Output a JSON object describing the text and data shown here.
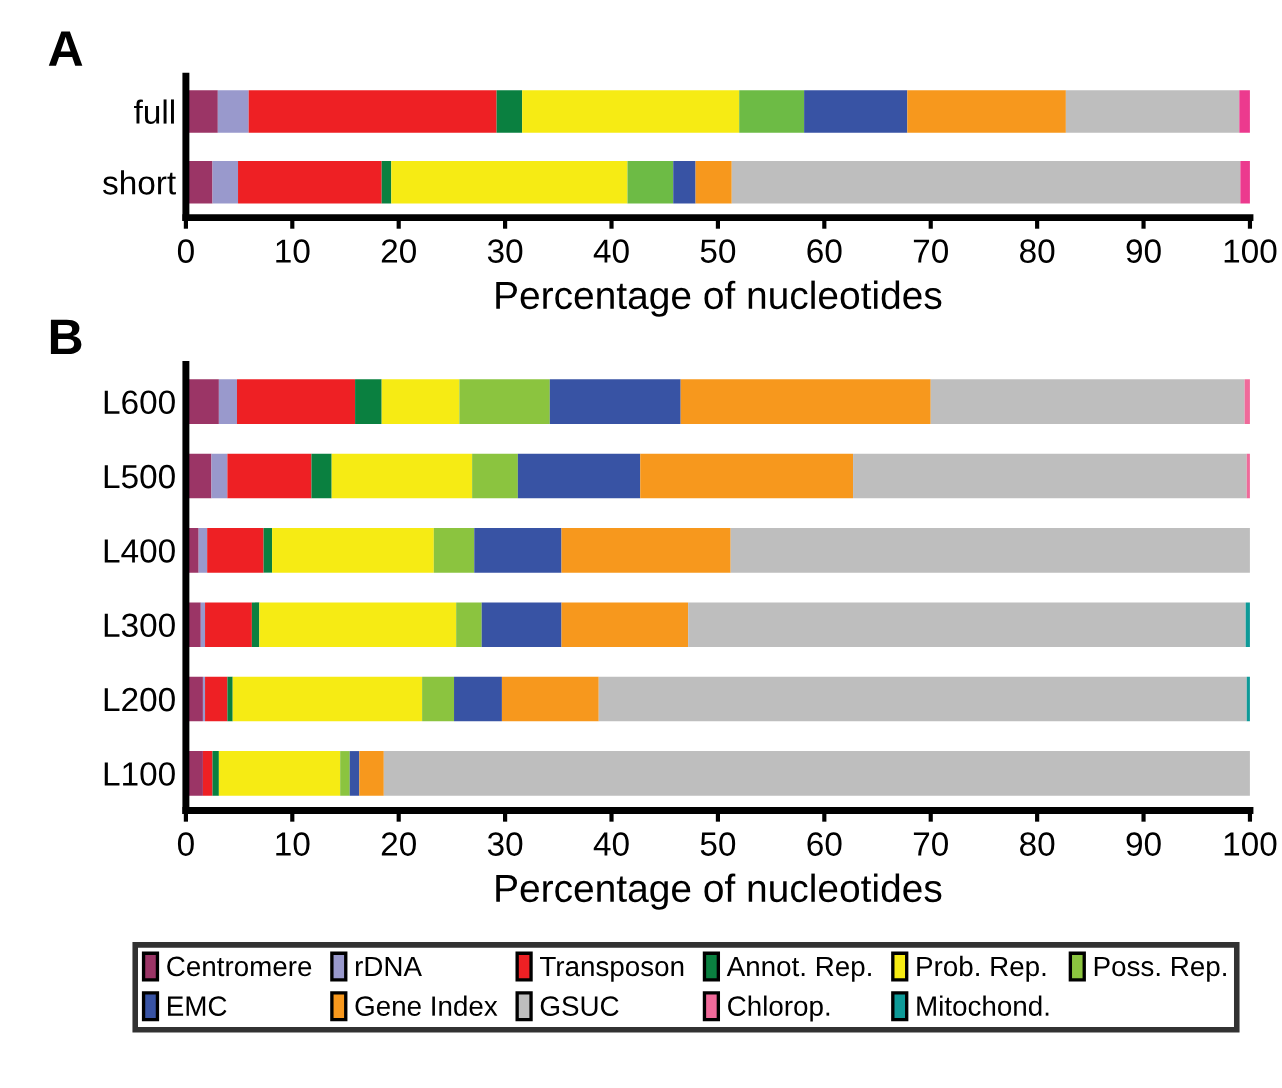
{
  "chart_data": [
    {
      "type": "bar",
      "title": "A",
      "orientation": "horizontal",
      "stacked": true,
      "xlabel": "Percentage of nucleotides",
      "categories": [
        "full",
        "short"
      ],
      "xlim": [
        0,
        100
      ],
      "xticks": [
        0,
        10,
        20,
        30,
        40,
        50,
        60,
        70,
        80,
        90,
        100
      ],
      "grid": false,
      "legend": false,
      "series": [
        {
          "color": "#9b3566",
          "values": [
            3.0,
            2.5
          ]
        },
        {
          "color": "#9999cc",
          "values": [
            2.9,
            2.4
          ]
        },
        {
          "color": "#ee2024",
          "values": [
            23.3,
            13.5
          ]
        },
        {
          "color": "#0a8040",
          "values": [
            2.4,
            0.9
          ]
        },
        {
          "color": "#f6eb14",
          "values": [
            20.4,
            22.2
          ]
        },
        {
          "color": "#6dbb45",
          "values": [
            6.1,
            4.3
          ]
        },
        {
          "color": "#3853a4",
          "values": [
            9.7,
            2.1
          ]
        },
        {
          "color": "#f7981d",
          "values": [
            14.9,
            3.4
          ]
        },
        {
          "color": "#bebebe",
          "values": [
            16.3,
            47.8
          ]
        },
        {
          "color": "#ec3a8e",
          "values": [
            1.0,
            0.9
          ]
        }
      ]
    },
    {
      "type": "bar",
      "title": "B",
      "orientation": "horizontal",
      "stacked": true,
      "xlabel": "Percentage of nucleotides",
      "categories": [
        "L600",
        "L500",
        "L400",
        "L300",
        "L200",
        "L100"
      ],
      "xlim": [
        0,
        100
      ],
      "xticks": [
        0,
        10,
        20,
        30,
        40,
        50,
        60,
        70,
        80,
        90,
        100
      ],
      "grid": false,
      "legend": "bottom",
      "series": [
        {
          "name": "Centromere",
          "color": "#9b3566",
          "values": [
            3.1,
            2.4,
            1.2,
            1.4,
            1.6,
            1.6
          ]
        },
        {
          "name": "rDNA",
          "color": "#9999cc",
          "values": [
            1.7,
            1.5,
            0.8,
            0.4,
            0.2,
            0
          ]
        },
        {
          "name": "Transposon",
          "color": "#ee2024",
          "values": [
            11.1,
            7.9,
            5.3,
            4.4,
            2.1,
            0.9
          ]
        },
        {
          "name": "Annot. Rep.",
          "color": "#0a8040",
          "values": [
            2.5,
            1.9,
            0.8,
            0.7,
            0.5,
            0.6
          ]
        },
        {
          "name": "Prob. Rep.",
          "color": "#f6eb14",
          "values": [
            7.3,
            13.2,
            15.2,
            18.5,
            17.8,
            11.4
          ]
        },
        {
          "name": "Poss. Rep.",
          "color": "#8bc43f",
          "values": [
            8.5,
            4.3,
            3.8,
            2.4,
            3.0,
            0.9
          ]
        },
        {
          "name": "EMC",
          "color": "#3853a4",
          "values": [
            12.3,
            11.5,
            8.2,
            7.5,
            4.5,
            0.9
          ]
        },
        {
          "name": "Gene Index",
          "color": "#f7981d",
          "values": [
            23.5,
            20.0,
            15.9,
            11.9,
            9.1,
            2.3
          ]
        },
        {
          "name": "GSUC",
          "color": "#bebebe",
          "values": [
            29.5,
            37.0,
            48.8,
            52.4,
            60.9,
            81.4
          ]
        },
        {
          "name": "Chlorop.",
          "color": "#f06a9a",
          "values": [
            0.5,
            0.3,
            0,
            0,
            0,
            0
          ]
        },
        {
          "name": "Mitochond.",
          "color": "#0e9a98",
          "values": [
            0,
            0,
            0,
            0.4,
            0.3,
            0
          ]
        }
      ]
    }
  ]
}
